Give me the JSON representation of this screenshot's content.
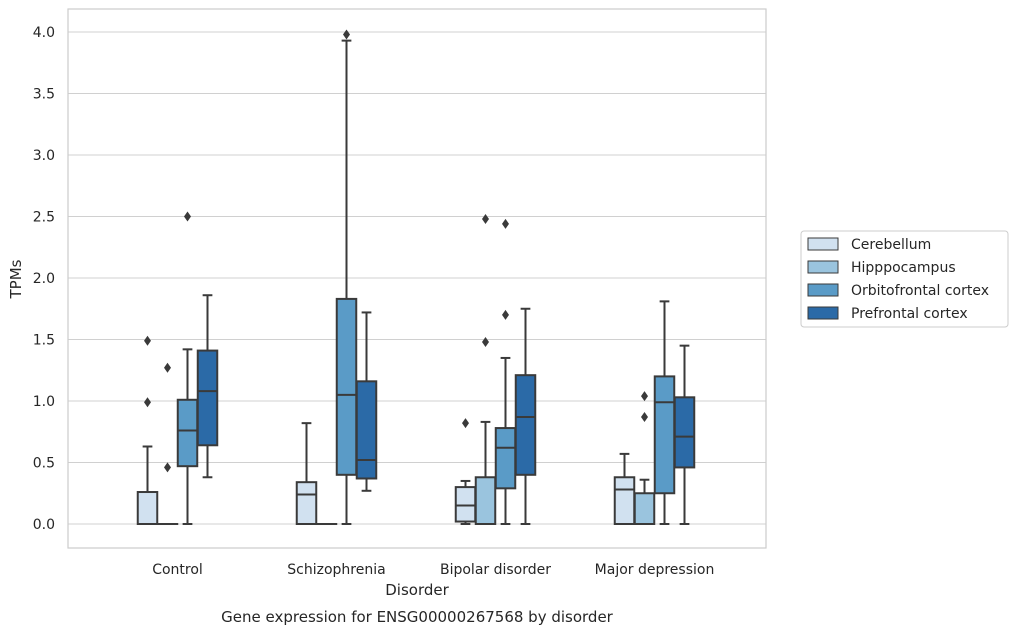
{
  "chart_data": {
    "type": "box",
    "title": "Gene expression for ENSG00000267568 by disorder",
    "xlabel": "Disorder",
    "ylabel": "TPMs",
    "ylim": [
      -0.2,
      4.2
    ],
    "yticks": [
      0.0,
      0.5,
      1.0,
      1.5,
      2.0,
      2.5,
      3.0,
      3.5,
      4.0
    ],
    "ytick_labels": [
      "0.0",
      "0.5",
      "1.0",
      "1.5",
      "2.0",
      "2.5",
      "3.0",
      "3.5",
      "4.0"
    ],
    "grid": true,
    "legend_position": "right",
    "categories": [
      "Control",
      "Schizophrenia",
      "Bipolar disorder",
      "Major depression"
    ],
    "series": [
      {
        "name": "Cerebellum",
        "color": "#d1e1f0",
        "boxes": [
          {
            "whisker_low": 0.0,
            "q1": 0.0,
            "median": 0.0,
            "q3": 0.26,
            "whisker_high": 0.63,
            "outliers": [
              0.99,
              1.49
            ]
          },
          {
            "whisker_low": 0.0,
            "q1": 0.0,
            "median": 0.24,
            "q3": 0.34,
            "whisker_high": 0.82,
            "outliers": []
          },
          {
            "whisker_low": 0.0,
            "q1": 0.02,
            "median": 0.15,
            "q3": 0.3,
            "whisker_high": 0.35,
            "outliers": [
              0.82
            ]
          },
          {
            "whisker_low": 0.0,
            "q1": 0.0,
            "median": 0.28,
            "q3": 0.38,
            "whisker_high": 0.57,
            "outliers": []
          }
        ]
      },
      {
        "name": "Hipppocampus",
        "color": "#9ac4de",
        "boxes": [
          {
            "whisker_low": 0.0,
            "q1": 0.0,
            "median": 0.0,
            "q3": 0.0,
            "whisker_high": 0.0,
            "outliers": [
              0.46,
              1.27
            ]
          },
          {
            "whisker_low": 0.0,
            "q1": 0.0,
            "median": 0.0,
            "q3": 0.0,
            "whisker_high": 0.0,
            "outliers": []
          },
          {
            "whisker_low": 0.0,
            "q1": 0.0,
            "median": 0.0,
            "q3": 0.38,
            "whisker_high": 0.83,
            "outliers": [
              1.48,
              2.48
            ]
          },
          {
            "whisker_low": 0.0,
            "q1": 0.0,
            "median": 0.0,
            "q3": 0.25,
            "whisker_high": 0.36,
            "outliers": [
              0.87,
              1.04
            ]
          }
        ]
      },
      {
        "name": "Orbitofrontal cortex",
        "color": "#5a9bc7",
        "boxes": [
          {
            "whisker_low": 0.0,
            "q1": 0.47,
            "median": 0.76,
            "q3": 1.01,
            "whisker_high": 1.42,
            "outliers": [
              2.5
            ]
          },
          {
            "whisker_low": 0.0,
            "q1": 0.4,
            "median": 1.05,
            "q3": 1.83,
            "whisker_high": 3.93,
            "outliers": [
              3.98
            ]
          },
          {
            "whisker_low": 0.0,
            "q1": 0.29,
            "median": 0.62,
            "q3": 0.78,
            "whisker_high": 1.35,
            "outliers": [
              1.7,
              2.44
            ]
          },
          {
            "whisker_low": 0.0,
            "q1": 0.25,
            "median": 0.99,
            "q3": 1.2,
            "whisker_high": 1.81,
            "outliers": []
          }
        ]
      },
      {
        "name": "Prefrontal cortex",
        "color": "#2b6aa7",
        "boxes": [
          {
            "whisker_low": 0.38,
            "q1": 0.64,
            "median": 1.08,
            "q3": 1.41,
            "whisker_high": 1.86,
            "outliers": []
          },
          {
            "whisker_low": 0.27,
            "q1": 0.37,
            "median": 0.52,
            "q3": 1.16,
            "whisker_high": 1.72,
            "outliers": []
          },
          {
            "whisker_low": 0.0,
            "q1": 0.4,
            "median": 0.87,
            "q3": 1.21,
            "whisker_high": 1.75,
            "outliers": []
          },
          {
            "whisker_low": 0.0,
            "q1": 0.46,
            "median": 0.71,
            "q3": 1.03,
            "whisker_high": 1.45,
            "outliers": []
          }
        ]
      }
    ]
  }
}
